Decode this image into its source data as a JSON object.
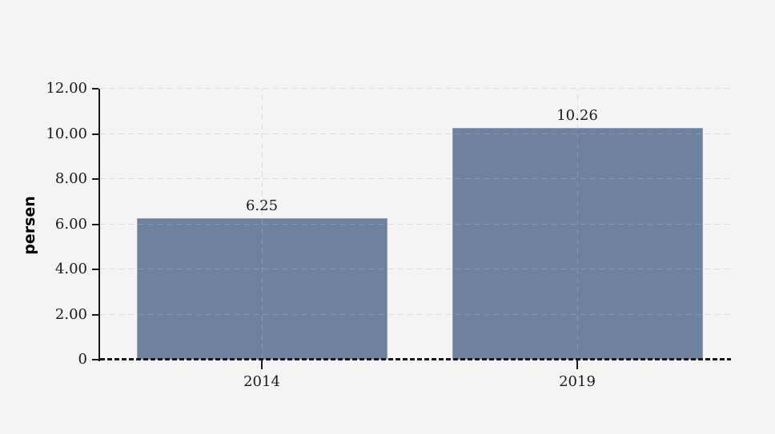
{
  "chart_data": {
    "type": "bar",
    "title": "",
    "xlabel": "",
    "ylabel": "persen",
    "categories": [
      "2014",
      "2019"
    ],
    "values": [
      6.25,
      10.26
    ],
    "value_labels": [
      "6.25",
      "10.26"
    ],
    "ylim": [
      0,
      12
    ],
    "ytick_values": [
      0,
      2,
      4,
      6,
      8,
      10,
      12
    ],
    "ytick_labels": [
      "0",
      "2.00",
      "4.00",
      "6.00",
      "8.00",
      "10.00",
      "12.00"
    ],
    "grid": "dashed, horizontal at each y tick and vertical at each bar center",
    "legend_position": "none",
    "colors": {
      "background": "#f4f4f4",
      "bar_fill": "#6e82a0",
      "bar_border": "#94a2b6",
      "gridline": "#d7d7d7",
      "gridline_over_bar": "rgba(255,255,255,0.16)",
      "axis": "#17191d",
      "text": "#1a1a1a"
    }
  }
}
